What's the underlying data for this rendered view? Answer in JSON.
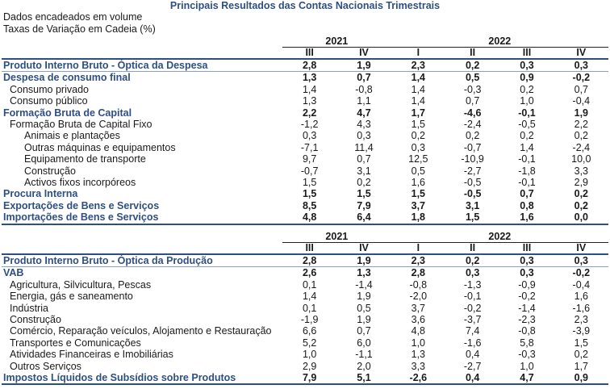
{
  "title": "Principais Resultados das Contas Nacionais Trimestrais",
  "notes": [
    "Dados encadeados em volume",
    "Taxas de Variação em Cadeia (%)"
  ],
  "years": [
    "2021",
    "2022"
  ],
  "quarters": [
    "III",
    "IV",
    "I",
    "II",
    "III",
    "IV"
  ],
  "table1": [
    {
      "label": "Produto Interno Bruto - Óptica da Despesa",
      "bold": true,
      "indent": 0,
      "v": [
        "2,8",
        "1,9",
        "2,3",
        "0,2",
        "0,3",
        "0,3"
      ]
    },
    {
      "label": "Despesa de consumo final",
      "bold": true,
      "indent": 0,
      "v": [
        "1,3",
        "0,7",
        "1,4",
        "0,5",
        "0,9",
        "-0,2"
      ]
    },
    {
      "label": "Consumo privado",
      "bold": false,
      "indent": 1,
      "v": [
        "1,4",
        "-0,8",
        "1,4",
        "-0,3",
        "0,2",
        "0,7"
      ]
    },
    {
      "label": "Consumo público",
      "bold": false,
      "indent": 1,
      "v": [
        "1,3",
        "1,1",
        "1,4",
        "0,7",
        "1,0",
        "-0,4"
      ]
    },
    {
      "label": "Formação Bruta de Capital",
      "bold": true,
      "indent": 0,
      "v": [
        "2,2",
        "4,7",
        "1,7",
        "-4,6",
        "-0,1",
        "1,9"
      ]
    },
    {
      "label": "Formação Bruta de Capital Fixo",
      "bold": false,
      "indent": 1,
      "v": [
        "-1,2",
        "4,3",
        "1,5",
        "-2,4",
        "-0,5",
        "2,2"
      ]
    },
    {
      "label": "Animais e plantações",
      "bold": false,
      "indent": 2,
      "v": [
        "0,3",
        "0,3",
        "0,2",
        "0,2",
        "0,2",
        "0,2"
      ]
    },
    {
      "label": "Outras máquinas e equipamentos",
      "bold": false,
      "indent": 2,
      "v": [
        "-7,1",
        "11,4",
        "0,3",
        "-0,7",
        "1,4",
        "-2,4"
      ]
    },
    {
      "label": "Equipamento de transporte",
      "bold": false,
      "indent": 2,
      "v": [
        "9,7",
        "0,7",
        "12,5",
        "-10,9",
        "-0,1",
        "10,0"
      ]
    },
    {
      "label": "Construção",
      "bold": false,
      "indent": 2,
      "v": [
        "-0,7",
        "3,1",
        "0,5",
        "-2,7",
        "-1,8",
        "3,3"
      ]
    },
    {
      "label": "Activos fixos incorpóreos",
      "bold": false,
      "indent": 2,
      "v": [
        "1,5",
        "0,2",
        "1,6",
        "-0,5",
        "-0,1",
        "2,9"
      ]
    },
    {
      "label": "Procura Interna",
      "bold": true,
      "indent": 0,
      "v": [
        "1,5",
        "1,5",
        "1,5",
        "-0,5",
        "0,7",
        "0,2"
      ]
    },
    {
      "label": "Exportações de Bens e Serviços",
      "bold": true,
      "indent": 0,
      "v": [
        "8,5",
        "7,9",
        "3,7",
        "3,1",
        "0,8",
        "0,2"
      ]
    },
    {
      "label": "Importações de Bens e Serviços",
      "bold": true,
      "indent": 0,
      "v": [
        "4,8",
        "6,4",
        "1,8",
        "1,5",
        "1,6",
        "0,0"
      ]
    }
  ],
  "table2": [
    {
      "label": "Produto Interno Bruto - Óptica da Produção",
      "bold": true,
      "indent": 0,
      "v": [
        "2,8",
        "1,9",
        "2,3",
        "0,2",
        "0,3",
        "0,3"
      ]
    },
    {
      "label": "VAB",
      "bold": true,
      "indent": 0,
      "v": [
        "2,6",
        "1,3",
        "2,8",
        "0,3",
        "0,3",
        "-0,2"
      ]
    },
    {
      "label": "Agricultura, Silvicultura, Pescas",
      "bold": false,
      "indent": 1,
      "v": [
        "0,1",
        "-1,4",
        "-0,8",
        "-1,3",
        "-0,9",
        "-0,4"
      ]
    },
    {
      "label": "Energia, gás e saneamento",
      "bold": false,
      "indent": 1,
      "v": [
        "1,4",
        "1,9",
        "-2,0",
        "-0,1",
        "-0,2",
        "1,6"
      ]
    },
    {
      "label": "Indústria",
      "bold": false,
      "indent": 1,
      "v": [
        "0,1",
        "0,5",
        "3,7",
        "-0,2",
        "-1,4",
        "-1,6"
      ]
    },
    {
      "label": "Construção",
      "bold": false,
      "indent": 1,
      "v": [
        "-1,9",
        "1,9",
        "3,6",
        "-3,7",
        "-2,3",
        "2,3"
      ]
    },
    {
      "label": "Comércio, Reparação veículos, Alojamento e Restauração",
      "bold": false,
      "indent": 1,
      "v": [
        "6,6",
        "0,7",
        "4,8",
        "7,4",
        "-0,8",
        "-3,9"
      ]
    },
    {
      "label": "Transportes e Comunicações",
      "bold": false,
      "indent": 1,
      "v": [
        "5,2",
        "6,0",
        "1,0",
        "-1,6",
        "5,8",
        "1,5"
      ]
    },
    {
      "label": "Atividades Financeiras e Imobiliárias",
      "bold": false,
      "indent": 1,
      "v": [
        "1,0",
        "-1,1",
        "1,3",
        "0,4",
        "-0,3",
        "0,2"
      ]
    },
    {
      "label": "Outros Serviços",
      "bold": false,
      "indent": 1,
      "v": [
        "2,9",
        "2,0",
        "3,3",
        "-2,7",
        "1,0",
        "1,7"
      ]
    },
    {
      "label": "Impostos Líquidos de Subsídios sobre Produtos",
      "bold": true,
      "indent": 0,
      "v": [
        "7,9",
        "5,1",
        "-2,6",
        "0,4",
        "4,7",
        "0,9"
      ]
    }
  ]
}
